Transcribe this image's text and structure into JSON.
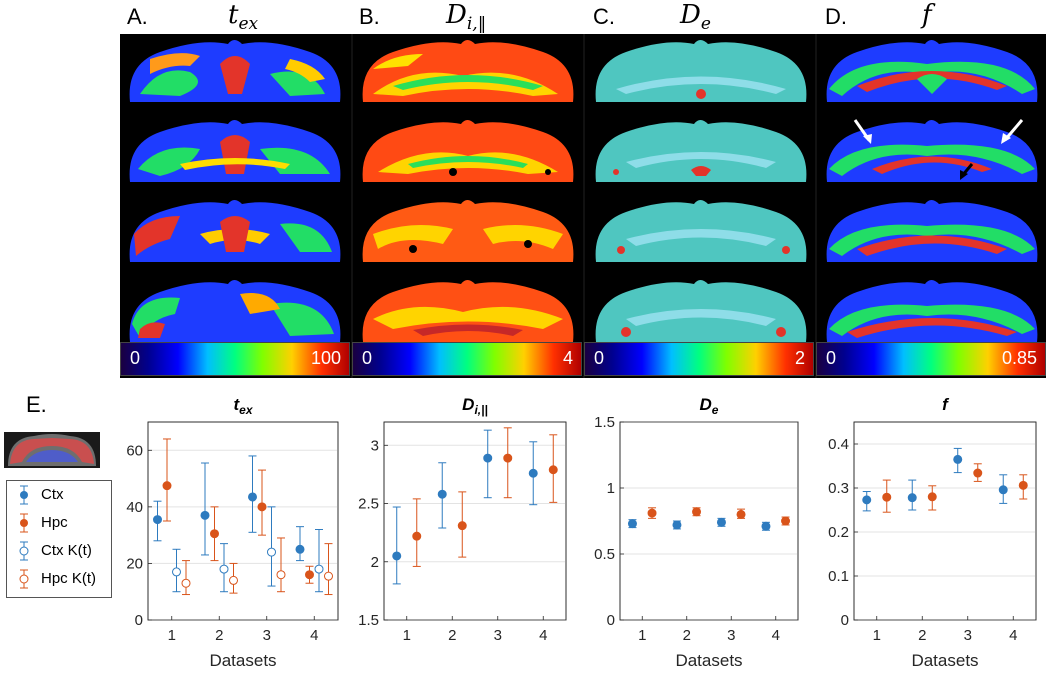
{
  "maps": {
    "panels": [
      {
        "letter": "A.",
        "param": "t",
        "sub": "ex",
        "cmin": "0",
        "cmax": "100"
      },
      {
        "letter": "B.",
        "param": "D",
        "sub": "i,‖",
        "cmin": "0",
        "cmax": "4"
      },
      {
        "letter": "C.",
        "param": "D",
        "sub": "e",
        "cmin": "0",
        "cmax": "2"
      },
      {
        "letter": "D.",
        "param": "f",
        "sub": "",
        "cmin": "0",
        "cmax": "0.85"
      }
    ],
    "colormap": "jet"
  },
  "plots": {
    "letter": "E.",
    "legend": [
      "Ctx",
      "Hpc",
      "Ctx K(t)",
      "Hpc K(t)"
    ],
    "colors": {
      "ctx": "#2e7bbf",
      "hpc": "#d9541a"
    }
  },
  "chart_data": [
    {
      "type": "scatter",
      "title": "tex",
      "title_main": "t",
      "title_sub": "ex",
      "xlabel": "Datasets",
      "ylabel": "",
      "x": [
        1,
        2,
        3,
        4
      ],
      "xlim": [
        0.5,
        4.5
      ],
      "ylim": [
        0,
        70
      ],
      "yticks": [
        "0",
        "20",
        "40",
        "60"
      ],
      "ytick_values": [
        0,
        20,
        40,
        60
      ],
      "xticks": [
        "1",
        "2",
        "3",
        "4"
      ],
      "grid": true,
      "series": [
        {
          "name": "Ctx",
          "offset": -0.3,
          "filled": true,
          "color": "#2e7bbf",
          "values": [
            35.5,
            37,
            43.5,
            25
          ],
          "lower": [
            28,
            23,
            31,
            21
          ],
          "upper": [
            42,
            55.5,
            58,
            33
          ]
        },
        {
          "name": "Hpc",
          "offset": -0.1,
          "filled": true,
          "color": "#d9541a",
          "values": [
            47.5,
            30.5,
            40,
            16
          ],
          "lower": [
            35,
            21,
            30,
            13
          ],
          "upper": [
            64,
            40,
            53,
            19
          ]
        },
        {
          "name": "Ctx K(t)",
          "offset": 0.1,
          "filled": false,
          "color": "#2e7bbf",
          "values": [
            17,
            18,
            24,
            18
          ],
          "lower": [
            10,
            10,
            12,
            10
          ],
          "upper": [
            25,
            27,
            40,
            32
          ]
        },
        {
          "name": "Hpc K(t)",
          "offset": 0.3,
          "filled": false,
          "color": "#d9541a",
          "values": [
            13,
            14,
            16,
            15.5
          ],
          "lower": [
            9,
            9.5,
            10,
            9
          ],
          "upper": [
            21,
            20,
            29,
            27
          ]
        }
      ]
    },
    {
      "type": "scatter",
      "title": "Di,||",
      "title_main": "D",
      "title_sub": "i,||",
      "xlabel": "",
      "ylabel": "",
      "x": [
        1,
        2,
        3,
        4
      ],
      "xlim": [
        0.5,
        4.5
      ],
      "ylim": [
        1.5,
        3.2
      ],
      "yticks": [
        "1.5",
        "2",
        "2.5",
        "3"
      ],
      "ytick_values": [
        1.5,
        2,
        2.5,
        3
      ],
      "xticks": [
        "1",
        "2",
        "3",
        "4"
      ],
      "grid": true,
      "series": [
        {
          "name": "Ctx",
          "offset": -0.22,
          "filled": true,
          "color": "#2e7bbf",
          "values": [
            2.05,
            2.58,
            2.89,
            2.76
          ],
          "lower": [
            1.81,
            2.29,
            2.55,
            2.49
          ],
          "upper": [
            2.47,
            2.85,
            3.13,
            3.03
          ]
        },
        {
          "name": "Hpc",
          "offset": 0.22,
          "filled": true,
          "color": "#d9541a",
          "values": [
            2.22,
            2.31,
            2.89,
            2.79
          ],
          "lower": [
            1.96,
            2.04,
            2.55,
            2.51
          ],
          "upper": [
            2.54,
            2.6,
            3.15,
            3.09
          ]
        }
      ]
    },
    {
      "type": "scatter",
      "title": "De",
      "title_main": "D",
      "title_sub": "e",
      "xlabel": "Datasets",
      "ylabel": "",
      "x": [
        1,
        2,
        3,
        4
      ],
      "xlim": [
        0.5,
        4.5
      ],
      "ylim": [
        0,
        1.5
      ],
      "yticks": [
        "0",
        "0.5",
        "1",
        "1.5"
      ],
      "ytick_values": [
        0,
        0.5,
        1,
        1.5
      ],
      "xticks": [
        "1",
        "2",
        "3",
        "4"
      ],
      "grid": true,
      "series": [
        {
          "name": "Ctx",
          "offset": -0.22,
          "filled": true,
          "color": "#2e7bbf",
          "values": [
            0.73,
            0.72,
            0.74,
            0.71
          ],
          "lower": [
            0.7,
            0.69,
            0.71,
            0.68
          ],
          "upper": [
            0.76,
            0.75,
            0.77,
            0.74
          ]
        },
        {
          "name": "Hpc",
          "offset": 0.22,
          "filled": true,
          "color": "#d9541a",
          "values": [
            0.81,
            0.82,
            0.8,
            0.75
          ],
          "lower": [
            0.77,
            0.79,
            0.77,
            0.72
          ],
          "upper": [
            0.85,
            0.85,
            0.84,
            0.78
          ]
        }
      ]
    },
    {
      "type": "scatter",
      "title": "f",
      "title_main": "f",
      "title_sub": "",
      "xlabel": "Datasets",
      "ylabel": "",
      "x": [
        1,
        2,
        3,
        4
      ],
      "xlim": [
        0.5,
        4.5
      ],
      "ylim": [
        0,
        0.45
      ],
      "yticks": [
        "0",
        "0.1",
        "0.2",
        "0.3",
        "0.4"
      ],
      "ytick_values": [
        0,
        0.1,
        0.2,
        0.3,
        0.4
      ],
      "xticks": [
        "1",
        "2",
        "3",
        "4"
      ],
      "grid": true,
      "series": [
        {
          "name": "Ctx",
          "offset": -0.22,
          "filled": true,
          "color": "#2e7bbf",
          "values": [
            0.273,
            0.278,
            0.365,
            0.296
          ],
          "lower": [
            0.248,
            0.25,
            0.335,
            0.265
          ],
          "upper": [
            0.292,
            0.318,
            0.39,
            0.33
          ]
        },
        {
          "name": "Hpc",
          "offset": 0.22,
          "filled": true,
          "color": "#d9541a",
          "values": [
            0.279,
            0.28,
            0.334,
            0.306
          ],
          "lower": [
            0.245,
            0.25,
            0.315,
            0.275
          ],
          "upper": [
            0.318,
            0.305,
            0.355,
            0.33
          ]
        }
      ]
    }
  ]
}
